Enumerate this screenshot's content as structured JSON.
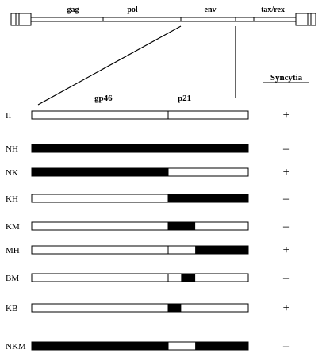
{
  "genome": {
    "genes": [
      "gag",
      "pol",
      "env",
      "tax/rex"
    ]
  },
  "header": {
    "gp46": "gp46",
    "p21": "p21",
    "syncytia": "Syncytia"
  },
  "colors": {
    "filled": "#000000",
    "open": "#ffffff"
  },
  "constructs": [
    {
      "name": "II",
      "syncytia": "+",
      "segments": []
    },
    {
      "name": "NH",
      "syncytia": "–",
      "segments": [
        [
          0.0,
          1.0
        ]
      ]
    },
    {
      "name": "NK",
      "syncytia": "+",
      "segments": [
        [
          0.0,
          0.63
        ]
      ]
    },
    {
      "name": "KH",
      "syncytia": "–",
      "segments": [
        [
          0.63,
          1.0
        ]
      ]
    },
    {
      "name": "KM",
      "syncytia": "–",
      "segments": [
        [
          0.63,
          0.755
        ]
      ]
    },
    {
      "name": "MH",
      "syncytia": "+",
      "segments": [
        [
          0.755,
          1.0
        ]
      ]
    },
    {
      "name": "BM",
      "syncytia": "–",
      "segments": [
        [
          0.69,
          0.755
        ]
      ]
    },
    {
      "name": "KB",
      "syncytia": "+",
      "segments": [
        [
          0.63,
          0.69
        ]
      ]
    },
    {
      "name": "NKM",
      "syncytia": "–",
      "segments": [
        [
          0.0,
          0.63
        ],
        [
          0.755,
          1.0
        ]
      ]
    }
  ]
}
